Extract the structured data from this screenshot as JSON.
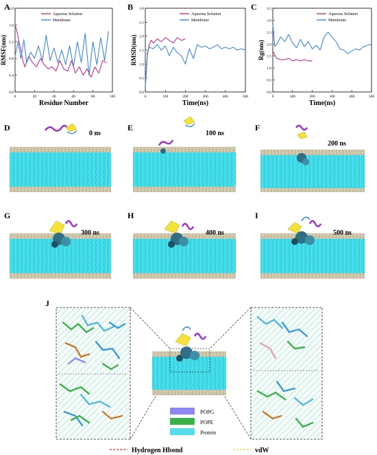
{
  "panel_letters": [
    "A",
    "B",
    "C",
    "D",
    "E",
    "F",
    "G",
    "H",
    "I",
    "J"
  ],
  "time_labels": [
    "0 ns",
    "100 ns",
    "200 ns",
    "300 ns",
    "400 ns",
    "500 ns"
  ],
  "legend_aqueous": "Aqueous Solution",
  "legend_membrane": "Membrane",
  "colors": {
    "aqueous": "#d12a8f",
    "membrane": "#3a86e8",
    "membrane_fill": "#39d9e6",
    "lipid": "#b9aa86",
    "popg": "#8f86f2",
    "pope": "#3bb14a",
    "protein": "#56dce8",
    "hbond": "#d02a2a",
    "vdw": "#e3d427"
  },
  "bottom_legend": {
    "popg": "POPG",
    "pope": "POPE",
    "protein": "Protein",
    "hbond": "Hydrogen Hbond",
    "vdw": "vdW"
  },
  "chart_data": [
    {
      "type": "line",
      "xlabel": "Residue Number",
      "ylabel": "RMSF(nm)",
      "xticks": [
        0,
        20,
        40,
        60,
        80,
        100
      ],
      "yticks": [
        0.0,
        0.4,
        0.8,
        1.2,
        1.6,
        2.0
      ],
      "xlim": [
        0,
        100
      ],
      "ylim": [
        0,
        2.0
      ],
      "series": [
        {
          "name": "Aqueous Solution",
          "x": [
            0,
            2,
            4,
            6,
            8,
            10,
            14,
            18,
            22,
            26,
            30,
            34,
            38,
            42,
            46,
            50,
            54,
            58,
            62,
            66,
            70,
            74,
            78,
            82,
            86,
            90,
            94
          ],
          "values": [
            1.6,
            1.45,
            1.2,
            1.0,
            0.75,
            0.6,
            0.85,
            0.7,
            0.6,
            0.8,
            0.65,
            0.55,
            0.6,
            0.5,
            0.75,
            0.55,
            0.5,
            0.75,
            0.45,
            0.6,
            0.4,
            0.55,
            0.35,
            0.6,
            0.45,
            0.75,
            0.7
          ]
        },
        {
          "name": "Membrane",
          "x": [
            0,
            3,
            6,
            9,
            12,
            16,
            20,
            24,
            28,
            32,
            36,
            40,
            44,
            48,
            52,
            56,
            60,
            64,
            68,
            72,
            76,
            80,
            84,
            88,
            92,
            96
          ],
          "values": [
            0.85,
            1.2,
            0.8,
            1.25,
            0.7,
            0.95,
            0.8,
            1.1,
            0.75,
            1.35,
            0.75,
            1.05,
            0.7,
            1.0,
            0.65,
            1.1,
            0.6,
            1.2,
            0.7,
            1.4,
            0.4,
            1.2,
            0.65,
            1.3,
            0.75,
            1.45
          ]
        }
      ]
    },
    {
      "type": "line",
      "xlabel": "Time(ns)",
      "ylabel": "RMSD(nm)",
      "xticks": [
        0,
        100,
        200,
        300,
        400,
        500
      ],
      "yticks": [
        0.0,
        0.5,
        1.0,
        1.5,
        2.0,
        2.5,
        3.0
      ],
      "xlim": [
        0,
        500
      ],
      "ylim": [
        0,
        3.0
      ],
      "series": [
        {
          "name": "Aqueous Solution",
          "x": [
            0,
            10,
            20,
            30,
            40,
            60,
            80,
            100,
            120,
            140,
            160,
            180,
            200
          ],
          "values": [
            0.2,
            1.3,
            1.7,
            1.85,
            1.75,
            1.9,
            1.8,
            1.95,
            1.85,
            1.75,
            1.95,
            1.85,
            1.9
          ]
        },
        {
          "name": "Membrane",
          "x": [
            0,
            10,
            20,
            40,
            60,
            80,
            100,
            120,
            140,
            160,
            180,
            200,
            220,
            240,
            260,
            280,
            300,
            320,
            340,
            360,
            380,
            400,
            420,
            440,
            460,
            480,
            500
          ],
          "values": [
            0.2,
            1.4,
            1.6,
            1.55,
            1.7,
            1.5,
            1.65,
            1.3,
            1.6,
            1.4,
            1.3,
            1.0,
            1.55,
            1.2,
            1.7,
            1.6,
            1.65,
            1.55,
            1.6,
            1.7,
            1.55,
            1.6,
            1.55,
            1.6,
            1.5,
            1.55,
            1.5
          ]
        }
      ]
    },
    {
      "type": "line",
      "xlabel": "Time(ns)",
      "ylabel": "Rg(nm)",
      "xticks": [
        0,
        100,
        200,
        300,
        400,
        500
      ],
      "yticks": [
        0.0,
        0.5,
        1.0,
        1.5,
        2.0,
        2.5,
        3.0,
        3.5
      ],
      "xlim": [
        0,
        500
      ],
      "ylim": [
        0,
        3.5
      ],
      "series": [
        {
          "name": "Aqueous Solution",
          "x": [
            0,
            10,
            20,
            40,
            60,
            80,
            100,
            120,
            140,
            160,
            180,
            200
          ],
          "values": [
            1.7,
            1.55,
            1.4,
            1.35,
            1.35,
            1.4,
            1.3,
            1.35,
            1.3,
            1.35,
            1.3,
            1.3
          ]
        },
        {
          "name": "Membrane",
          "x": [
            0,
            10,
            20,
            40,
            60,
            80,
            100,
            120,
            140,
            160,
            180,
            200,
            220,
            240,
            260,
            280,
            300,
            320,
            340,
            360,
            380,
            400,
            420,
            440,
            460,
            480,
            500
          ],
          "values": [
            2.8,
            1.9,
            2.0,
            2.3,
            2.1,
            2.4,
            2.05,
            1.85,
            2.2,
            1.9,
            2.1,
            1.8,
            1.95,
            1.75,
            2.3,
            2.5,
            2.3,
            2.1,
            1.8,
            1.75,
            1.6,
            1.7,
            1.8,
            1.75,
            1.9,
            1.95,
            2.0
          ]
        }
      ]
    }
  ]
}
